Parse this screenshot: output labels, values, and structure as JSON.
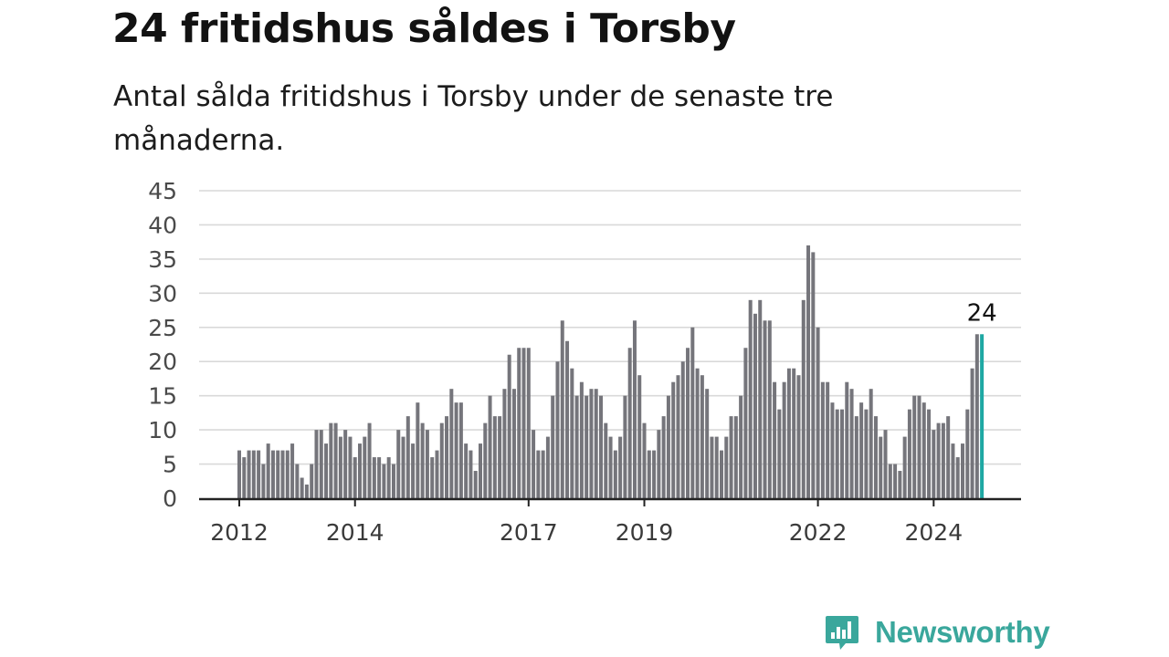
{
  "header": {
    "title": "24 fritidshus såldes i Torsby",
    "subtitle": "Antal sålda fritidshus i Torsby under de senaste tre månaderna."
  },
  "brand": {
    "name": "Newsworthy",
    "icon": "newsworthy-logo-icon",
    "color": "#3aa79c"
  },
  "colors": {
    "bar": "#75757b",
    "highlight": "#1fa8a3",
    "grid": "#d9d9d9",
    "axis": "#222222"
  },
  "chart_data": {
    "type": "bar",
    "x_start": "2012-01",
    "frequency": "monthly",
    "y_ticks": [
      0,
      5,
      10,
      15,
      20,
      25,
      30,
      35,
      40,
      45
    ],
    "ylim": [
      0,
      45
    ],
    "x_ticks": [
      "2012",
      "2014",
      "2017",
      "2019",
      "2022",
      "2024"
    ],
    "grid": true,
    "highlight_last": true,
    "last_value_label": "24",
    "values": [
      7,
      6,
      7,
      7,
      7,
      5,
      8,
      7,
      7,
      7,
      7,
      8,
      5,
      3,
      2,
      5,
      10,
      10,
      8,
      11,
      11,
      9,
      10,
      9,
      6,
      8,
      9,
      11,
      6,
      6,
      5,
      6,
      5,
      10,
      9,
      12,
      8,
      14,
      11,
      10,
      6,
      7,
      11,
      12,
      16,
      14,
      14,
      8,
      7,
      4,
      8,
      11,
      15,
      12,
      12,
      16,
      21,
      16,
      22,
      22,
      22,
      10,
      7,
      7,
      9,
      15,
      20,
      26,
      23,
      19,
      15,
      17,
      15,
      16,
      16,
      15,
      11,
      9,
      7,
      9,
      15,
      22,
      26,
      18,
      11,
      7,
      7,
      10,
      12,
      15,
      17,
      18,
      20,
      22,
      25,
      19,
      18,
      16,
      9,
      9,
      7,
      9,
      12,
      12,
      15,
      22,
      29,
      27,
      29,
      26,
      26,
      17,
      13,
      17,
      19,
      19,
      18,
      29,
      37,
      36,
      25,
      17,
      17,
      14,
      13,
      13,
      17,
      16,
      12,
      14,
      13,
      16,
      12,
      9,
      10,
      5,
      5,
      4,
      9,
      13,
      15,
      15,
      14,
      13,
      10,
      11,
      11,
      12,
      8,
      6,
      8,
      13,
      19,
      24,
      24
    ]
  }
}
